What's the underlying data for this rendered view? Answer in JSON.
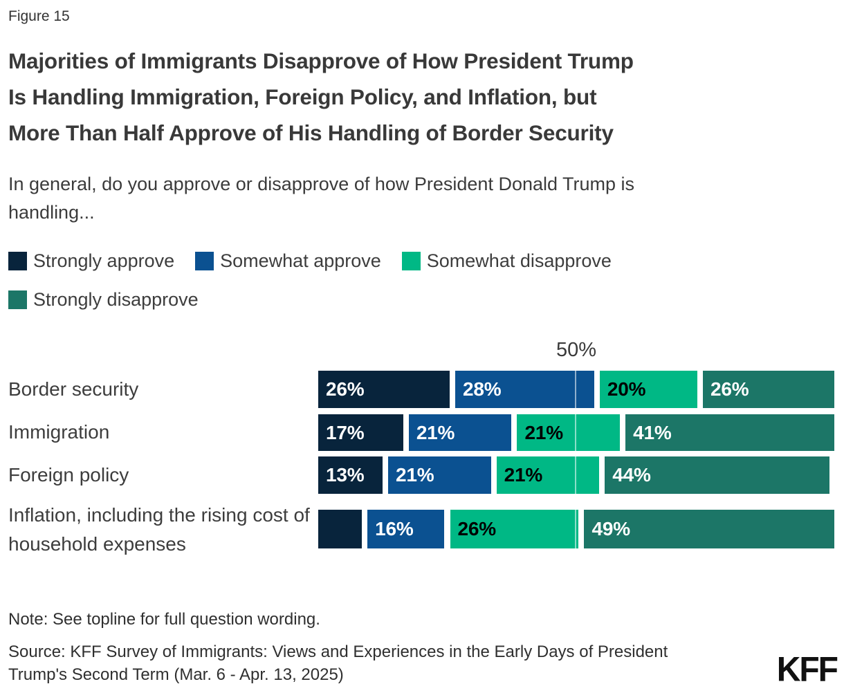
{
  "meta": {
    "figure_label": "Figure 15"
  },
  "header": {
    "title": "Majorities of Immigrants Disapprove of How President Trump\nIs Handling Immigration, Foreign Policy, and Inflation, but\nMore Than Half Approve of His Handling of Border Security",
    "subtitle": "In general, do you approve or disapprove of how President Donald Trump is\nhandling..."
  },
  "colors": {
    "strongly_approve": "#08243c",
    "somewhat_approve": "#0b5191",
    "somewhat_disapprove": "#00b885",
    "strongly_disapprove": "#1c7667"
  },
  "legend": {
    "items": [
      {
        "label": "Strongly approve",
        "color": "#08243c"
      },
      {
        "label": "Somewhat approve",
        "color": "#0b5191"
      },
      {
        "label": "Somewhat disapprove",
        "color": "#00b885"
      },
      {
        "label": "Strongly disapprove",
        "color": "#1c7667"
      }
    ]
  },
  "chart_data": {
    "type": "bar",
    "orientation": "horizontal",
    "stacked": true,
    "xlim": [
      0,
      100
    ],
    "gridline_label": "50%",
    "gridline_value": 50,
    "categories": [
      "Border security",
      "Immigration",
      "Foreign policy",
      "Inflation, including the rising cost of household expenses"
    ],
    "series": [
      {
        "name": "Strongly approve",
        "color": "#08243c",
        "label_color": "#ffffff",
        "values": [
          26,
          17,
          13,
          9
        ],
        "value_labels": [
          "26%",
          "17%",
          "13%",
          ""
        ]
      },
      {
        "name": "Somewhat approve",
        "color": "#0b5191",
        "label_color": "#ffffff",
        "values": [
          28,
          21,
          21,
          16
        ],
        "value_labels": [
          "28%",
          "21%",
          "21%",
          "16%"
        ]
      },
      {
        "name": "Somewhat disapprove",
        "color": "#00b885",
        "label_color": "#000000",
        "values": [
          20,
          21,
          21,
          26
        ],
        "value_labels": [
          "20%",
          "21%",
          "21%",
          "26%"
        ]
      },
      {
        "name": "Strongly disapprove",
        "color": "#1c7667",
        "label_color": "#ffffff",
        "values": [
          26,
          41,
          44,
          49
        ],
        "value_labels": [
          "26%",
          "41%",
          "44%",
          "49%"
        ]
      }
    ]
  },
  "footer": {
    "note": "Note: See topline for full question wording.",
    "source": "Source: KFF Survey of Immigrants: Views and Experiences in the Early Days of President\nTrump's Second Term (Mar. 6 - Apr. 13, 2025)",
    "logo": "KFF"
  }
}
